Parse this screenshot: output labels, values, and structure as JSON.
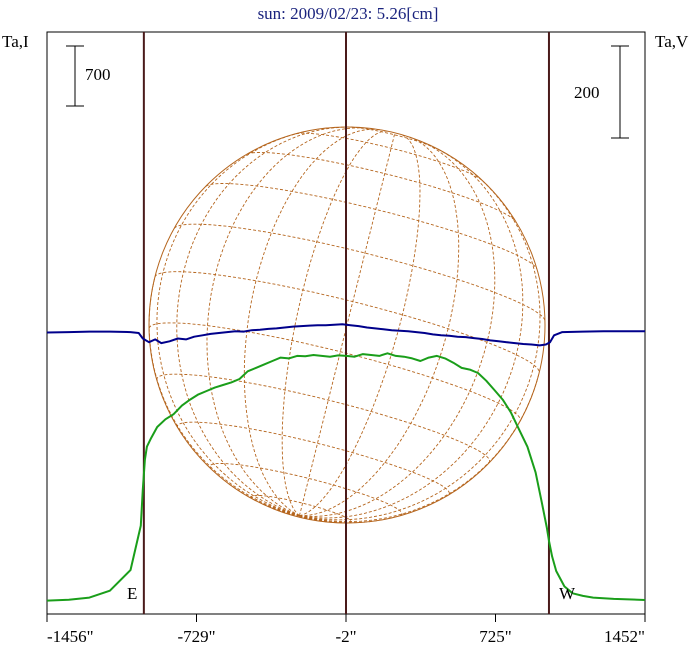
{
  "chart_data": {
    "type": "line",
    "title": "sun: 2009/02/23: 5.26[cm]",
    "left_axis_label": "Ta,I",
    "right_axis_label": "Ta,V",
    "left_scale_label": "700",
    "right_scale_label": "200",
    "east_label": "E",
    "west_label": "W",
    "x_tick_labels": [
      "-1456\"",
      "-729\"",
      "-2\"",
      "725\"",
      "1452\""
    ],
    "x_ticks": [
      -1456,
      -729,
      -2,
      725,
      1452
    ],
    "xlim": [
      -1456,
      1452
    ],
    "solar_limbs": [
      -985,
      -2,
      985
    ],
    "series": [
      {
        "color": "#1a9e1a",
        "x": [
          -1456,
          -1350,
          -1250,
          -1150,
          -1050,
          -1000,
          -990,
          -980,
          -970,
          -950,
          -920,
          -880,
          -840,
          -800,
          -760,
          -720,
          -680,
          -640,
          -600,
          -560,
          -520,
          -480,
          -440,
          -400,
          -360,
          -320,
          -280,
          -240,
          -200,
          -160,
          -120,
          -80,
          -40,
          0,
          40,
          80,
          120,
          160,
          200,
          240,
          280,
          320,
          360,
          400,
          440,
          480,
          520,
          560,
          600,
          640,
          680,
          720,
          760,
          800,
          840,
          880,
          920,
          950,
          975,
          985,
          1000,
          1020,
          1060,
          1100,
          1150,
          1200,
          1300,
          1452
        ],
        "y": [
          5,
          15,
          40,
          120,
          360,
          880,
          1300,
          1650,
          1800,
          1900,
          2030,
          2120,
          2180,
          2280,
          2350,
          2410,
          2450,
          2490,
          2520,
          2550,
          2590,
          2680,
          2720,
          2760,
          2800,
          2840,
          2830,
          2860,
          2855,
          2870,
          2860,
          2850,
          2865,
          2860,
          2850,
          2880,
          2870,
          2860,
          2890,
          2860,
          2850,
          2830,
          2800,
          2840,
          2860,
          2830,
          2780,
          2720,
          2700,
          2660,
          2570,
          2460,
          2350,
          2200,
          2000,
          1800,
          1500,
          1150,
          850,
          700,
          520,
          350,
          170,
          90,
          60,
          40,
          25,
          12
        ]
      },
      {
        "color": "#00008b",
        "x": [
          -1456,
          -1350,
          -1250,
          -1150,
          -1050,
          -1010,
          -990,
          -960,
          -930,
          -900,
          -860,
          -820,
          -780,
          -740,
          -700,
          -660,
          -620,
          -580,
          -540,
          -500,
          -460,
          -420,
          -380,
          -340,
          -300,
          -260,
          -220,
          -180,
          -140,
          -100,
          -60,
          -20,
          20,
          60,
          100,
          140,
          180,
          220,
          260,
          300,
          340,
          380,
          420,
          460,
          500,
          540,
          580,
          620,
          660,
          700,
          740,
          780,
          820,
          860,
          900,
          940,
          970,
          990,
          1010,
          1050,
          1150,
          1250,
          1350,
          1452
        ],
        "y": [
          1,
          2,
          3,
          3,
          2,
          0,
          -12,
          -20,
          -14,
          -22,
          -18,
          -12,
          -14,
          -8,
          -5,
          -2,
          0,
          2,
          4,
          3,
          6,
          7,
          9,
          10,
          12,
          14,
          15,
          16,
          17,
          17,
          18,
          19,
          17,
          15,
          12,
          10,
          8,
          6,
          5,
          4,
          2,
          0,
          -3,
          -5,
          -6,
          -8,
          -9,
          -11,
          -13,
          -16,
          -18,
          -20,
          -22,
          -24,
          -25,
          -27,
          -25,
          -20,
          -5,
          2,
          3,
          4,
          4,
          4
        ]
      }
    ]
  }
}
